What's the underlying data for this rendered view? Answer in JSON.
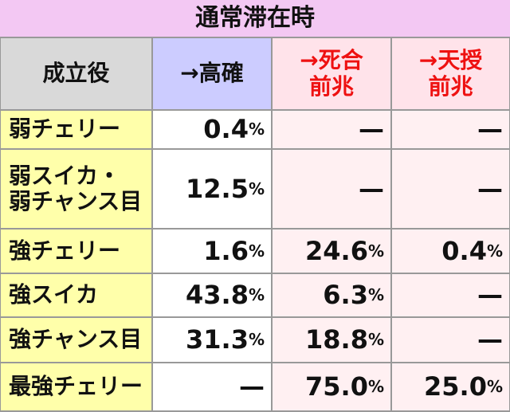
{
  "header": {
    "title": "通常滞在時"
  },
  "table": {
    "columns": [
      "成立役",
      "→高確",
      "→死合\n前兆",
      "→天授\n前兆"
    ],
    "rows": [
      [
        "弱チェリー",
        "0.4%",
        "—",
        "—"
      ],
      [
        "弱スイカ・\n弱チャンス目",
        "12.5%",
        "—",
        "—"
      ],
      [
        "強チェリー",
        "1.6%",
        "24.6%",
        "0.4%"
      ],
      [
        "強スイカ",
        "43.8%",
        "6.3%",
        "—"
      ],
      [
        "強チャンス目",
        "31.3%",
        "18.8%",
        "—"
      ],
      [
        "最強チェリー",
        "—",
        "75.0%",
        "25.0%"
      ]
    ]
  }
}
